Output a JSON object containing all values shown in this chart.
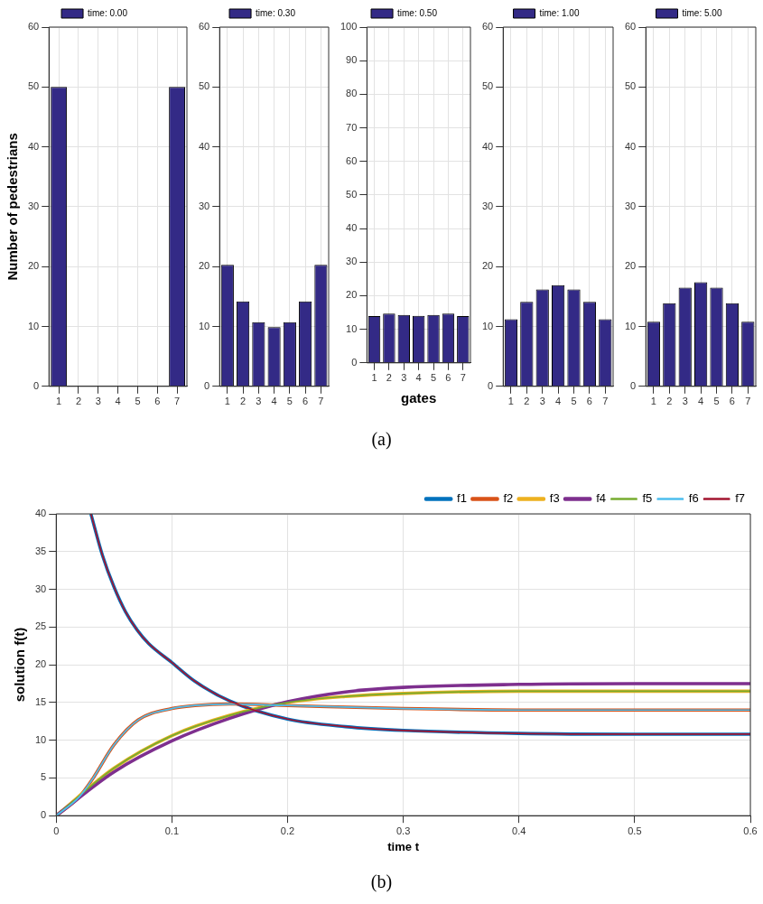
{
  "chart_data": [
    {
      "type": "bar",
      "categories": [
        "1",
        "2",
        "3",
        "4",
        "5",
        "6",
        "7"
      ],
      "ylabel": "Number of pedestrians",
      "ylim": [
        0,
        60
      ],
      "yticks": [
        0,
        10,
        20,
        30,
        40,
        50,
        60
      ],
      "grid": true,
      "legend": "top",
      "series": [
        {
          "name": "time: 0.00",
          "color": "#332a86",
          "values": [
            50,
            0,
            0,
            0,
            0,
            0,
            50
          ]
        }
      ]
    },
    {
      "type": "bar",
      "categories": [
        "1",
        "2",
        "3",
        "4",
        "5",
        "6",
        "7"
      ],
      "ylim": [
        0,
        60
      ],
      "yticks": [
        0,
        10,
        20,
        30,
        40,
        50,
        60
      ],
      "grid": true,
      "legend": "top",
      "series": [
        {
          "name": "time: 0.30",
          "color": "#332a86",
          "values": [
            20.3,
            14.2,
            10.7,
            9.9,
            10.7,
            14.2,
            20.3
          ]
        }
      ]
    },
    {
      "type": "bar",
      "categories": [
        "1",
        "2",
        "3",
        "4",
        "5",
        "6",
        "7"
      ],
      "xlabel": "gates",
      "annotations": [
        "(a)"
      ],
      "ylim": [
        0,
        100
      ],
      "yticks": [
        0,
        10,
        20,
        30,
        40,
        50,
        60,
        70,
        80,
        90,
        100
      ],
      "grid": true,
      "legend": "top",
      "series": [
        {
          "name": "time: 0.50",
          "color": "#332a86",
          "values": [
            13.9,
            14.7,
            14.3,
            14.0,
            14.3,
            14.7,
            13.9
          ]
        }
      ]
    },
    {
      "type": "bar",
      "categories": [
        "1",
        "2",
        "3",
        "4",
        "5",
        "6",
        "7"
      ],
      "ylim": [
        0,
        60
      ],
      "yticks": [
        0,
        10,
        20,
        30,
        40,
        50,
        60
      ],
      "grid": true,
      "legend": "top",
      "series": [
        {
          "name": "time: 1.00",
          "color": "#332a86",
          "values": [
            11.2,
            14.1,
            16.2,
            16.9,
            16.2,
            14.1,
            11.2
          ]
        }
      ]
    },
    {
      "type": "bar",
      "categories": [
        "1",
        "2",
        "3",
        "4",
        "5",
        "6",
        "7"
      ],
      "ylim": [
        0,
        60
      ],
      "yticks": [
        0,
        10,
        20,
        30,
        40,
        50,
        60
      ],
      "grid": true,
      "legend": "top",
      "series": [
        {
          "name": "time: 5.00",
          "color": "#332a86",
          "values": [
            10.8,
            13.9,
            16.5,
            17.4,
            16.5,
            13.9,
            10.8
          ]
        }
      ]
    },
    {
      "type": "line",
      "xlabel": "time t",
      "ylabel": "solution f(t)",
      "annotations": [
        "(b)"
      ],
      "xlim": [
        0,
        0.6
      ],
      "xticks": [
        0,
        0.1,
        0.2,
        0.3,
        0.4,
        0.5,
        0.6
      ],
      "ylim": [
        0,
        40
      ],
      "yticks": [
        0,
        5,
        10,
        15,
        20,
        25,
        30,
        35,
        40
      ],
      "grid": true,
      "legend": "top right",
      "marker": "none",
      "series": [
        {
          "name": "f1",
          "color": "#0072bd",
          "x": [
            0.03,
            0.04,
            0.05,
            0.06,
            0.07,
            0.08,
            0.1,
            0.12,
            0.15,
            0.2,
            0.25,
            0.3,
            0.4,
            0.5,
            0.6
          ],
          "values": [
            40,
            34.5,
            30.3,
            27,
            24.6,
            22.8,
            20.3,
            17.8,
            15.2,
            12.8,
            11.8,
            11.3,
            10.9,
            10.8,
            10.8
          ]
        },
        {
          "name": "f2",
          "color": "#d95319",
          "x": [
            0,
            0.02,
            0.032,
            0.05,
            0.071,
            0.1,
            0.12,
            0.15,
            0.2,
            0.3,
            0.4,
            0.5,
            0.6
          ],
          "values": [
            0,
            2.5,
            5,
            9.4,
            12.7,
            14.2,
            14.6,
            14.8,
            14.6,
            14.2,
            14,
            14,
            14
          ]
        },
        {
          "name": "f3",
          "color": "#edb120",
          "x": [
            0,
            0.05,
            0.1,
            0.15,
            0.2,
            0.25,
            0.3,
            0.4,
            0.5,
            0.6
          ],
          "values": [
            0,
            6.3,
            10.6,
            13.3,
            15,
            15.8,
            16.2,
            16.5,
            16.5,
            16.5
          ]
        },
        {
          "name": "f4",
          "color": "#7e2f8e",
          "x": [
            0,
            0.05,
            0.1,
            0.15,
            0.2,
            0.25,
            0.3,
            0.4,
            0.5,
            0.6
          ],
          "values": [
            0,
            5.8,
            9.9,
            12.9,
            15.1,
            16.4,
            17,
            17.4,
            17.5,
            17.5
          ]
        },
        {
          "name": "f5",
          "color": "#77ac30",
          "x": [
            0,
            0.05,
            0.1,
            0.15,
            0.2,
            0.25,
            0.3,
            0.4,
            0.5,
            0.6
          ],
          "values": [
            0,
            6.3,
            10.6,
            13.3,
            15,
            15.8,
            16.2,
            16.5,
            16.5,
            16.5
          ]
        },
        {
          "name": "f6",
          "color": "#4dbeee",
          "x": [
            0,
            0.02,
            0.032,
            0.05,
            0.071,
            0.1,
            0.12,
            0.15,
            0.2,
            0.3,
            0.4,
            0.5,
            0.6
          ],
          "values": [
            0,
            2.5,
            5,
            9.4,
            12.7,
            14.2,
            14.6,
            14.8,
            14.6,
            14.2,
            14,
            14,
            14
          ]
        },
        {
          "name": "f7",
          "color": "#a2142f",
          "x": [
            0.03,
            0.04,
            0.05,
            0.06,
            0.07,
            0.08,
            0.1,
            0.12,
            0.15,
            0.2,
            0.25,
            0.3,
            0.4,
            0.5,
            0.6
          ],
          "values": [
            40,
            34.5,
            30.3,
            27,
            24.6,
            22.8,
            20.3,
            17.8,
            15.2,
            12.8,
            11.8,
            11.3,
            10.9,
            10.8,
            10.8
          ]
        }
      ]
    }
  ]
}
